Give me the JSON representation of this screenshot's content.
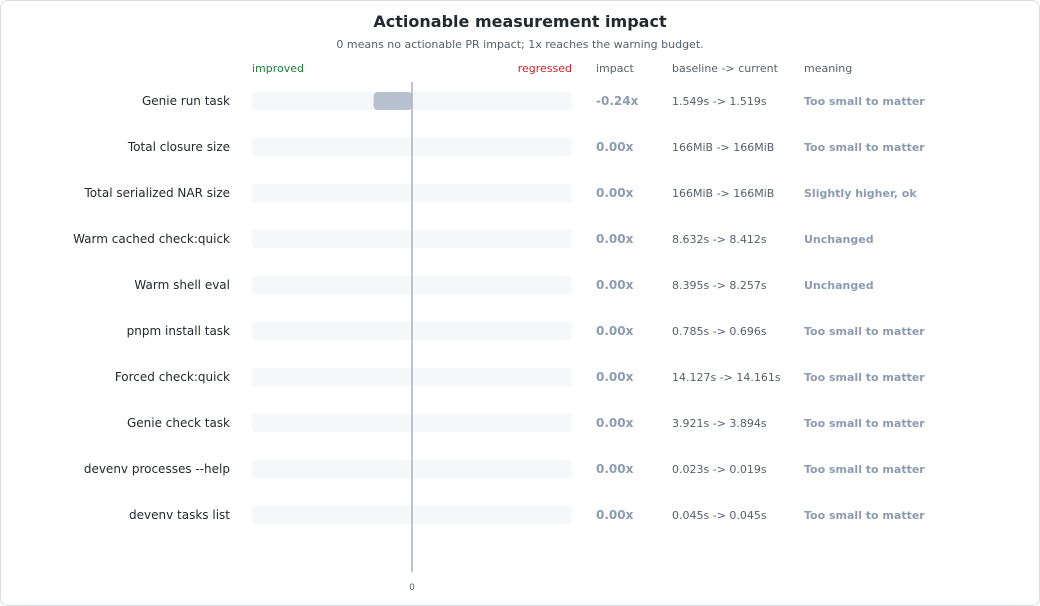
{
  "chart_data": {
    "type": "bar",
    "title": "Actionable measurement impact",
    "subtitle": "0 means no actionable PR impact; 1x reaches the warning budget.",
    "axis": {
      "left_label": "improved",
      "right_label": "regressed",
      "xlim": [
        -1,
        1
      ],
      "zero_tick": "0"
    },
    "columns": {
      "impact": "impact",
      "baseline_current": "baseline -> current",
      "meaning": "meaning"
    },
    "categories": [
      "Genie run task",
      "Total closure size",
      "Total serialized NAR size",
      "Warm cached check:quick",
      "Warm shell eval",
      "pnpm install task",
      "Forced check:quick",
      "Genie check task",
      "devenv processes --help",
      "devenv tasks list"
    ],
    "values": [
      -0.24,
      0,
      0,
      0,
      0,
      0,
      0,
      0,
      0,
      0
    ],
    "impact_labels": [
      "-0.24x",
      "0.00x",
      "0.00x",
      "0.00x",
      "0.00x",
      "0.00x",
      "0.00x",
      "0.00x",
      "0.00x",
      "0.00x"
    ],
    "baseline_current": [
      "1.549s -> 1.519s",
      "166MiB -> 166MiB",
      "166MiB -> 166MiB",
      "8.632s -> 8.412s",
      "8.395s -> 8.257s",
      "0.785s -> 0.696s",
      "14.127s -> 14.161s",
      "3.921s -> 3.894s",
      "0.023s -> 0.019s",
      "0.045s -> 0.045s"
    ],
    "meaning": [
      "Too small to matter",
      "Too small to matter",
      "Slightly higher, ok",
      "Unchanged",
      "Unchanged",
      "Too small to matter",
      "Too small to matter",
      "Too small to matter",
      "Too small to matter",
      "Too small to matter"
    ],
    "colors": {
      "improved": "#1a7f37",
      "regressed": "#cf222e",
      "bar": "#b8c1cf",
      "track": "#f6f7f9",
      "zero_line": "#aab2bf",
      "muted_value": "#8c9bb2"
    }
  }
}
